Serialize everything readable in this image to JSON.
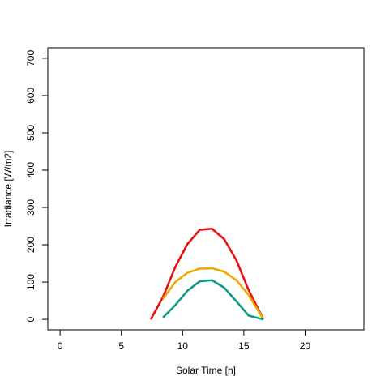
{
  "chart_data": {
    "type": "line",
    "title": "",
    "xlabel": "Solar Time [h]",
    "ylabel": "Irradiance [W/m2]",
    "xlim": [
      -1,
      24.8
    ],
    "ylim": [
      -28,
      728
    ],
    "xticks": [
      0,
      5,
      10,
      15,
      20
    ],
    "yticks": [
      0,
      100,
      200,
      300,
      400,
      500,
      600,
      700
    ],
    "grid": false,
    "legend": "none",
    "series": [
      {
        "color": "#e8110f",
        "x": [
          7.4,
          8.4,
          9.4,
          10.4,
          11.4,
          12.4,
          13.4,
          14.4,
          15.4,
          16.6
        ],
        "y": [
          0,
          60,
          140,
          202,
          240,
          243,
          215,
          158,
          78,
          0
        ]
      },
      {
        "color": "#f0a800",
        "x": [
          8.4,
          9.4,
          10.4,
          11.4,
          12.4,
          13.4,
          14.4,
          15.4,
          16.6
        ],
        "y": [
          55,
          100,
          125,
          136,
          137,
          128,
          105,
          65,
          0
        ]
      },
      {
        "color": "#0b9e86",
        "x": [
          8.4,
          9.4,
          10.4,
          11.4,
          12.4,
          13.4,
          14.4,
          15.4,
          16.6
        ],
        "y": [
          5,
          38,
          77,
          102,
          105,
          85,
          48,
          10,
          0
        ]
      }
    ]
  }
}
